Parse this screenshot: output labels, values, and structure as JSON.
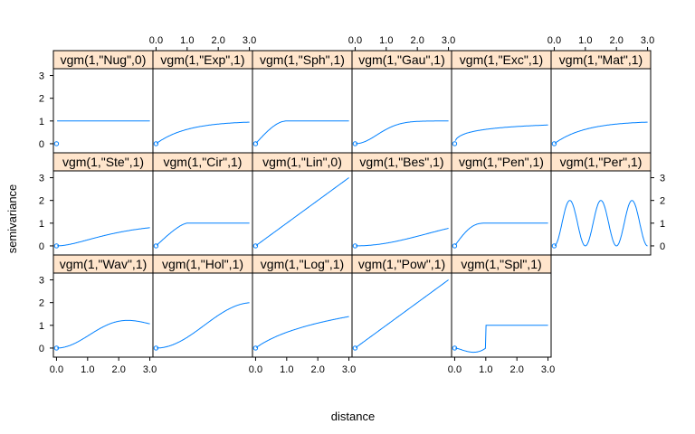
{
  "chart_data": {
    "type": "line",
    "xlabel": "distance",
    "ylabel": "semivariance",
    "xlim": [
      -0.1,
      3.1
    ],
    "ylim": [
      -0.4,
      3.3
    ],
    "x_ticks": [
      "0.0",
      "1.0",
      "2.0",
      "3.0"
    ],
    "y_ticks": [
      "0",
      "1",
      "2",
      "3"
    ],
    "layout": {
      "columns": 6,
      "rows": 3
    },
    "colors": {
      "line": "#0080ff",
      "strip": "#ffe5cc",
      "frame": "#000000"
    },
    "panels": [
      {
        "label": "vgm(1,\"Nug\",0)",
        "model": "Nug"
      },
      {
        "label": "vgm(1,\"Exp\",1)",
        "model": "Exp"
      },
      {
        "label": "vgm(1,\"Sph\",1)",
        "model": "Sph"
      },
      {
        "label": "vgm(1,\"Gau\",1)",
        "model": "Gau"
      },
      {
        "label": "vgm(1,\"Exc\",1)",
        "model": "Exc"
      },
      {
        "label": "vgm(1,\"Mat\",1)",
        "model": "Mat"
      },
      {
        "label": "vgm(1,\"Ste\",1)",
        "model": "Ste"
      },
      {
        "label": "vgm(1,\"Cir\",1)",
        "model": "Cir"
      },
      {
        "label": "vgm(1,\"Lin\",0)",
        "model": "Lin"
      },
      {
        "label": "vgm(1,\"Bes\",1)",
        "model": "Bes"
      },
      {
        "label": "vgm(1,\"Pen\",1)",
        "model": "Pen"
      },
      {
        "label": "vgm(1,\"Per\",1)",
        "model": "Per"
      },
      {
        "label": "vgm(1,\"Wav\",1)",
        "model": "Wav"
      },
      {
        "label": "vgm(1,\"Hol\",1)",
        "model": "Hol"
      },
      {
        "label": "vgm(1,\"Log\",1)",
        "model": "Log"
      },
      {
        "label": "vgm(1,\"Pow\",1)",
        "model": "Pow"
      },
      {
        "label": "vgm(1,\"Spl\",1)",
        "model": "Spl"
      }
    ]
  }
}
